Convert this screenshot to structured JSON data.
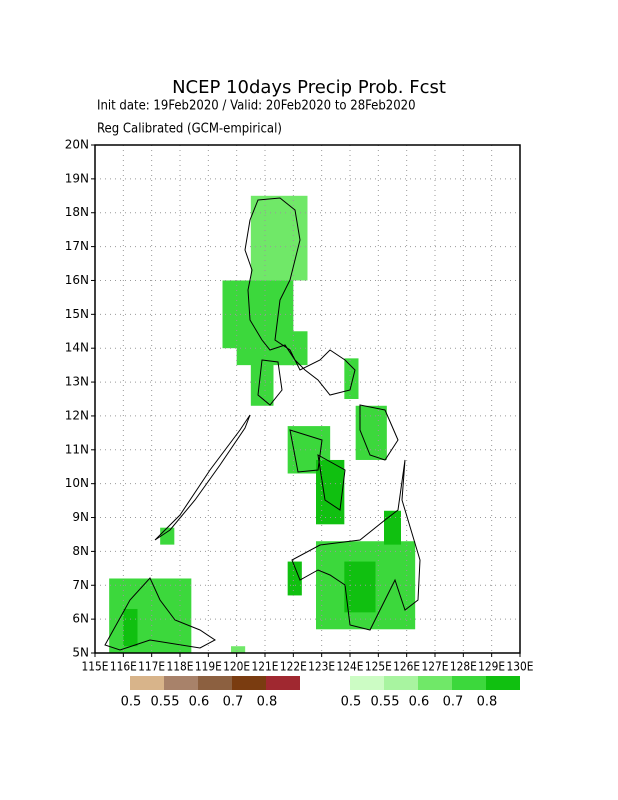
{
  "chart_data": {
    "type": "grid-map",
    "title": "NCEP 10days Precip Prob. Fcst",
    "subtitle": "Init date: 19Feb2020 / Valid: 20Feb2020 to 28Feb2020",
    "method": "Reg Calibrated (GCM-empirical)",
    "xlim": [
      115,
      130
    ],
    "ylim": [
      5,
      20
    ],
    "xticks": [
      {
        "value": 115,
        "label": "115E"
      },
      {
        "value": 116,
        "label": "116E"
      },
      {
        "value": 117,
        "label": "117E"
      },
      {
        "value": 118,
        "label": "118E"
      },
      {
        "value": 119,
        "label": "119E"
      },
      {
        "value": 120,
        "label": "120E"
      },
      {
        "value": 121,
        "label": "121E"
      },
      {
        "value": 122,
        "label": "122E"
      },
      {
        "value": 123,
        "label": "123E"
      },
      {
        "value": 124,
        "label": "124E"
      },
      {
        "value": 125,
        "label": "125E"
      },
      {
        "value": 126,
        "label": "126E"
      },
      {
        "value": 127,
        "label": "127E"
      },
      {
        "value": 128,
        "label": "128E"
      },
      {
        "value": 129,
        "label": "129E"
      },
      {
        "value": 130,
        "label": "130E"
      }
    ],
    "yticks": [
      {
        "value": 5,
        "label": "5N"
      },
      {
        "value": 6,
        "label": "6N"
      },
      {
        "value": 7,
        "label": "7N"
      },
      {
        "value": 8,
        "label": "8N"
      },
      {
        "value": 9,
        "label": "9N"
      },
      {
        "value": 10,
        "label": "10N"
      },
      {
        "value": 11,
        "label": "11N"
      },
      {
        "value": 12,
        "label": "12N"
      },
      {
        "value": 13,
        "label": "13N"
      },
      {
        "value": 14,
        "label": "14N"
      },
      {
        "value": 15,
        "label": "15N"
      },
      {
        "value": 16,
        "label": "16N"
      },
      {
        "value": 17,
        "label": "17N"
      },
      {
        "value": 18,
        "label": "18N"
      },
      {
        "value": 19,
        "label": "19N"
      },
      {
        "value": 20,
        "label": "20N"
      }
    ],
    "grid": true,
    "legend": {
      "thresholds": [
        0.5,
        0.55,
        0.6,
        0.7,
        0.8
      ],
      "dry_colors": [
        "#d8b48a",
        "#a8826a",
        "#8c6040",
        "#7a3c10",
        "#a02830"
      ],
      "wet_colors": [
        "#ccfcc4",
        "#a8f4a0",
        "#70e868",
        "#3cd83c",
        "#10c010"
      ]
    },
    "cells": [
      {
        "lon": [
          120.5,
          122.5
        ],
        "lat": [
          16,
          18.5
        ],
        "value": 0.6
      },
      {
        "lon": [
          119.5,
          122
        ],
        "lat": [
          14,
          16
        ],
        "value": 0.7
      },
      {
        "lon": [
          120,
          122
        ],
        "lat": [
          13.5,
          14.3
        ],
        "value": 0.7
      },
      {
        "lon": [
          120.5,
          121.3
        ],
        "lat": [
          12.3,
          13.8
        ],
        "value": 0.7
      },
      {
        "lon": [
          121.5,
          122.5
        ],
        "lat": [
          13.5,
          14.5
        ],
        "value": 0.7
      },
      {
        "lon": [
          123.8,
          124.3
        ],
        "lat": [
          12.5,
          13.7
        ],
        "value": 0.7
      },
      {
        "lon": [
          124.2,
          125.3
        ],
        "lat": [
          10.7,
          12.3
        ],
        "value": 0.7
      },
      {
        "lon": [
          121.8,
          123.3
        ],
        "lat": [
          10.3,
          11.7
        ],
        "value": 0.7
      },
      {
        "lon": [
          122.8,
          123.8
        ],
        "lat": [
          8.8,
          10.7
        ],
        "value": 0.8
      },
      {
        "lon": [
          122.8,
          126.3
        ],
        "lat": [
          5.7,
          8.3
        ],
        "value": 0.7
      },
      {
        "lon": [
          123.8,
          124.9
        ],
        "lat": [
          6.2,
          7.7
        ],
        "value": 0.8
      },
      {
        "lon": [
          125.2,
          125.8
        ],
        "lat": [
          8.2,
          9.2
        ],
        "value": 0.8
      },
      {
        "lon": [
          121.8,
          122.3
        ],
        "lat": [
          6.7,
          7.7
        ],
        "value": 0.8
      },
      {
        "lon": [
          115.5,
          118.4
        ],
        "lat": [
          5,
          7.2
        ],
        "value": 0.7
      },
      {
        "lon": [
          116,
          116.5
        ],
        "lat": [
          5.2,
          6.3
        ],
        "value": 0.8
      },
      {
        "lon": [
          117.3,
          117.8
        ],
        "lat": [
          8.2,
          8.7
        ],
        "value": 0.7
      },
      {
        "lon": [
          119.8,
          120.3
        ],
        "lat": [
          5,
          5.2
        ],
        "value": 0.6
      }
    ]
  }
}
